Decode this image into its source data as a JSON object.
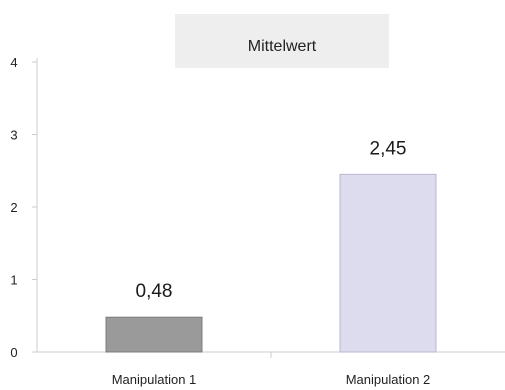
{
  "chart_data": {
    "type": "bar",
    "title": "Mittelwert",
    "categories": [
      "Manipulation 1",
      "Manipulation 2"
    ],
    "values": [
      0.48,
      2.45
    ],
    "data_labels": [
      "0,48",
      "2,45"
    ],
    "ylim": [
      0,
      4
    ],
    "yticks": [
      0,
      1,
      2,
      3,
      4
    ],
    "ytick_labels": [
      "0",
      "1",
      "2",
      "3",
      "4"
    ],
    "xlabel": "",
    "ylabel": "",
    "grid": false,
    "legend": "none",
    "colors": {
      "bars": [
        "#9a9a9a",
        "#dcdcee"
      ],
      "bar_borders": [
        "#7c7c7c",
        "#b8b8d0"
      ],
      "title_box": "#eeeeee",
      "axis": "#cccccc"
    }
  }
}
